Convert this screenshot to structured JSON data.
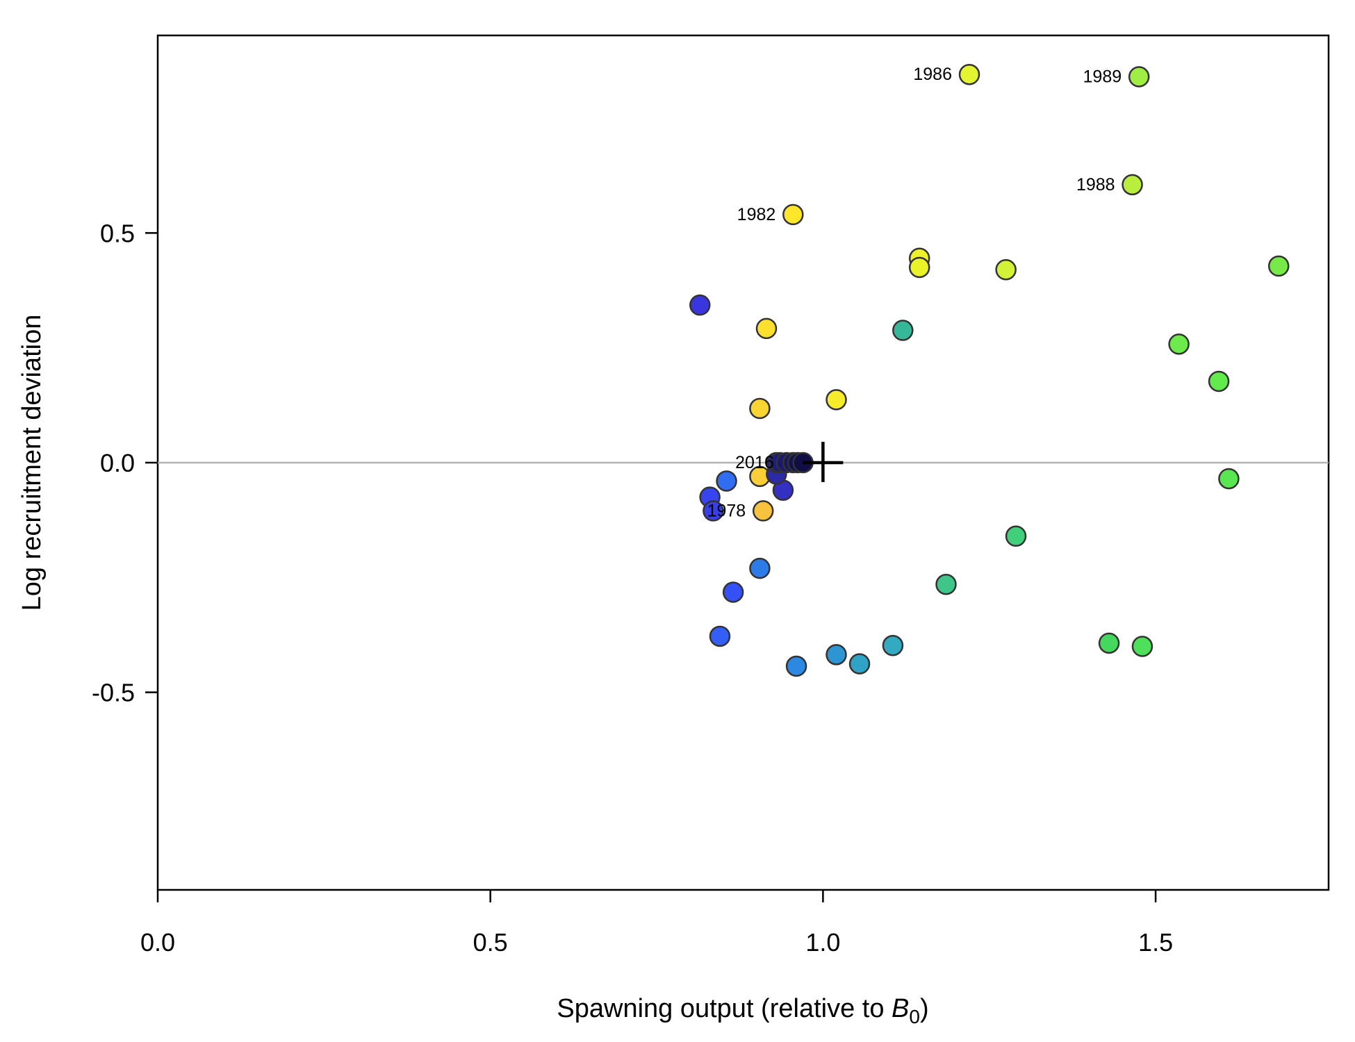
{
  "chart_data": {
    "type": "scatter",
    "title": "",
    "xlabel": "Spawning output (relative to ",
    "xlabel_symbol": "B",
    "xlabel_subscript": "0",
    "xlabel_close": ")",
    "ylabel": "Log recruitment deviation",
    "xlim": [
      0,
      1.76
    ],
    "ylim": [
      -0.93,
      0.93
    ],
    "x_ticks": [
      {
        "value": 0.0,
        "label": "0.0"
      },
      {
        "value": 0.5,
        "label": "0.5"
      },
      {
        "value": 1.0,
        "label": "1.0"
      },
      {
        "value": 1.5,
        "label": "1.5"
      }
    ],
    "y_ticks": [
      {
        "value": -0.5,
        "label": "-0.5"
      },
      {
        "value": 0.0,
        "label": "0.0"
      },
      {
        "value": 0.5,
        "label": "0.5"
      }
    ],
    "reference_line_y": 0,
    "reference_point": {
      "x": 1.0,
      "y": 0.0
    },
    "grid": false,
    "colors": {
      "reference_line": "#b3b3b3",
      "point_outline": "#333333",
      "axis": "#000000"
    },
    "points": [
      {
        "x": 0.91,
        "y": -0.105,
        "color": "#f7c23e",
        "year": "1978"
      },
      {
        "x": 0.905,
        "y": -0.03,
        "color": "#f9ce38",
        "year": ""
      },
      {
        "x": 0.905,
        "y": 0.118,
        "color": "#fbd633",
        "year": ""
      },
      {
        "x": 0.915,
        "y": 0.292,
        "color": "#fde02d",
        "year": ""
      },
      {
        "x": 0.955,
        "y": 0.54,
        "color": "#fee62a",
        "year": "1982"
      },
      {
        "x": 1.02,
        "y": 0.137,
        "color": "#f6ec2a",
        "year": ""
      },
      {
        "x": 1.145,
        "y": 0.445,
        "color": "#eef228",
        "year": ""
      },
      {
        "x": 1.145,
        "y": 0.425,
        "color": "#e9f328",
        "year": ""
      },
      {
        "x": 1.22,
        "y": 0.845,
        "color": "#e3f530",
        "year": "1986"
      },
      {
        "x": 1.275,
        "y": 0.42,
        "color": "#d2f238",
        "year": ""
      },
      {
        "x": 1.465,
        "y": 0.605,
        "color": "#b9ee3d",
        "year": "1988"
      },
      {
        "x": 1.475,
        "y": 0.84,
        "color": "#a0ee45",
        "year": "1989"
      },
      {
        "x": 1.685,
        "y": 0.428,
        "color": "#78ea48",
        "year": ""
      },
      {
        "x": 1.535,
        "y": 0.258,
        "color": "#6deb4c",
        "year": ""
      },
      {
        "x": 1.595,
        "y": 0.177,
        "color": "#63ea4d",
        "year": ""
      },
      {
        "x": 1.61,
        "y": -0.035,
        "color": "#5ae651",
        "year": ""
      },
      {
        "x": 1.48,
        "y": -0.4,
        "color": "#4ee05a",
        "year": ""
      },
      {
        "x": 1.43,
        "y": -0.393,
        "color": "#45d85f",
        "year": ""
      },
      {
        "x": 1.29,
        "y": -0.16,
        "color": "#42cf7b",
        "year": ""
      },
      {
        "x": 1.185,
        "y": -0.265,
        "color": "#3ec689",
        "year": ""
      },
      {
        "x": 1.12,
        "y": 0.288,
        "color": "#36b798",
        "year": ""
      },
      {
        "x": 1.105,
        "y": -0.398,
        "color": "#33aac1",
        "year": ""
      },
      {
        "x": 1.055,
        "y": -0.438,
        "color": "#2fa2c5",
        "year": ""
      },
      {
        "x": 1.02,
        "y": -0.418,
        "color": "#2d96d2",
        "year": ""
      },
      {
        "x": 0.96,
        "y": -0.443,
        "color": "#2c88e0",
        "year": ""
      },
      {
        "x": 0.905,
        "y": -0.23,
        "color": "#2d7be6",
        "year": ""
      },
      {
        "x": 0.855,
        "y": -0.04,
        "color": "#306df0",
        "year": ""
      },
      {
        "x": 0.845,
        "y": -0.378,
        "color": "#335ff7",
        "year": ""
      },
      {
        "x": 0.865,
        "y": -0.282,
        "color": "#3550f5",
        "year": ""
      },
      {
        "x": 0.83,
        "y": -0.075,
        "color": "#3745f0",
        "year": ""
      },
      {
        "x": 0.835,
        "y": -0.105,
        "color": "#3a3ee8",
        "year": ""
      },
      {
        "x": 0.815,
        "y": 0.343,
        "color": "#3a36df",
        "year": ""
      },
      {
        "x": 0.94,
        "y": -0.06,
        "color": "#3530c4",
        "year": ""
      },
      {
        "x": 0.93,
        "y": -0.025,
        "color": "#2d2aa8",
        "year": ""
      },
      {
        "x": 0.93,
        "y": 0.0,
        "color": "#252391",
        "year": ""
      },
      {
        "x": 0.935,
        "y": 0.0,
        "color": "#1f1d7c",
        "year": ""
      },
      {
        "x": 0.945,
        "y": 0.0,
        "color": "#1b196c",
        "year": ""
      },
      {
        "x": 0.955,
        "y": 0.0,
        "color": "#17155c",
        "year": ""
      },
      {
        "x": 0.962,
        "y": 0.0,
        "color": "#131150",
        "year": ""
      },
      {
        "x": 0.97,
        "y": 0.0,
        "color": "#100e44",
        "year": ""
      }
    ],
    "overlap_label": {
      "text": "2016",
      "x": 0.92,
      "y": 0.0
    }
  }
}
